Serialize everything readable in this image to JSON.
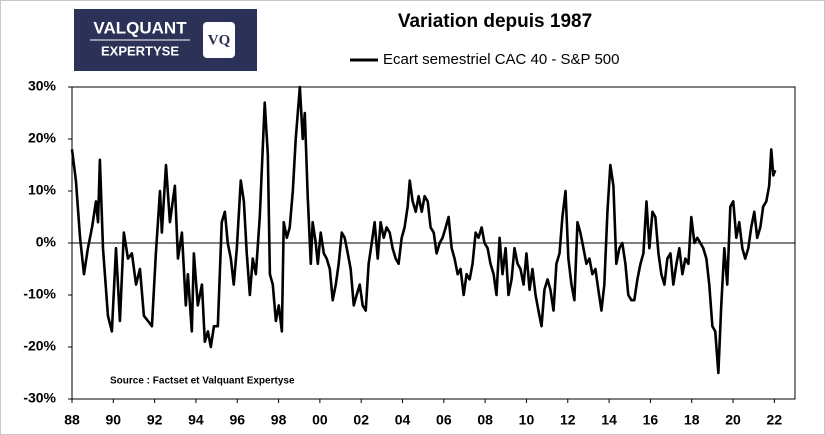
{
  "chart_data": {
    "type": "line",
    "title": "Variation depuis 1987",
    "annotation": "Source : Factset et Valquant Expertyse",
    "logo_text": [
      "VALQUANT",
      "EXPERTYSE",
      "VQ"
    ],
    "x": [
      1988.0,
      1988.19,
      1988.39,
      1988.58,
      1988.77,
      1988.97,
      1989.16,
      1989.26,
      1989.35,
      1989.5,
      1989.74,
      1989.93,
      1990.13,
      1990.32,
      1990.51,
      1990.71,
      1990.9,
      1991.1,
      1991.29,
      1991.48,
      1991.68,
      1991.87,
      1992.06,
      1992.26,
      1992.35,
      1992.55,
      1992.74,
      1992.98,
      1993.13,
      1993.32,
      1993.51,
      1993.61,
      1993.8,
      1993.9,
      1994.09,
      1994.29,
      1994.43,
      1994.58,
      1994.72,
      1994.87,
      1995.06,
      1995.25,
      1995.4,
      1995.54,
      1995.69,
      1995.83,
      1995.98,
      1996.17,
      1996.32,
      1996.46,
      1996.61,
      1996.75,
      1996.9,
      1997.09,
      1997.33,
      1997.48,
      1997.58,
      1997.72,
      1997.87,
      1998.01,
      1998.16,
      1998.25,
      1998.4,
      1998.54,
      1998.69,
      1998.83,
      1999.03,
      1999.17,
      1999.27,
      1999.41,
      1999.56,
      1999.65,
      1999.8,
      1999.9,
      2000.04,
      2000.19,
      2000.33,
      2000.48,
      2000.62,
      2000.77,
      2000.91,
      2001.06,
      2001.2,
      2001.35,
      2001.49,
      2001.64,
      2001.78,
      2001.93,
      2002.07,
      2002.22,
      2002.36,
      2002.51,
      2002.65,
      2002.8,
      2002.94,
      2003.09,
      2003.23,
      2003.38,
      2003.52,
      2003.67,
      2003.81,
      2003.96,
      2004.1,
      2004.25,
      2004.35,
      2004.49,
      2004.64,
      2004.78,
      2004.93,
      2005.07,
      2005.22,
      2005.36,
      2005.51,
      2005.65,
      2005.8,
      2005.94,
      2006.09,
      2006.23,
      2006.38,
      2006.52,
      2006.67,
      2006.81,
      2006.96,
      2007.1,
      2007.25,
      2007.39,
      2007.54,
      2007.68,
      2007.83,
      2007.97,
      2008.12,
      2008.26,
      2008.41,
      2008.55,
      2008.7,
      2008.84,
      2008.99,
      2009.13,
      2009.28,
      2009.42,
      2009.57,
      2009.71,
      2009.86,
      2010.0,
      2010.15,
      2010.29,
      2010.44,
      2010.58,
      2010.73,
      2010.87,
      2011.02,
      2011.16,
      2011.31,
      2011.45,
      2011.6,
      2011.74,
      2011.89,
      2012.03,
      2012.18,
      2012.32,
      2012.47,
      2012.61,
      2012.76,
      2012.9,
      2013.05,
      2013.19,
      2013.34,
      2013.48,
      2013.63,
      2013.77,
      2013.92,
      2014.06,
      2014.21,
      2014.35,
      2014.5,
      2014.64,
      2014.79,
      2014.93,
      2015.08,
      2015.22,
      2015.37,
      2015.52,
      2015.66,
      2015.81,
      2015.95,
      2016.1,
      2016.24,
      2016.39,
      2016.53,
      2016.68,
      2016.82,
      2016.97,
      2017.11,
      2017.26,
      2017.4,
      2017.55,
      2017.69,
      2017.84,
      2017.98,
      2018.13,
      2018.27,
      2018.42,
      2018.56,
      2018.71,
      2018.85,
      2019.0,
      2019.14,
      2019.29,
      2019.43,
      2019.58,
      2019.72,
      2019.87,
      2020.01,
      2020.16,
      2020.3,
      2020.45,
      2020.59,
      2020.74,
      2020.88,
      2021.03,
      2021.17,
      2021.32,
      2021.46,
      2021.61,
      2021.75,
      2021.85,
      2021.95,
      2022.04
    ],
    "series": [
      {
        "name": "Ecart semestriel CAC 40 - S&P 500",
        "color": "#000000",
        "values": [
          18,
          12,
          1,
          -6,
          -1,
          3,
          8,
          4,
          16,
          -1,
          -14,
          -17,
          -1,
          -15,
          2,
          -3,
          -2,
          -8,
          -5,
          -14,
          -15,
          -16,
          -2,
          10,
          2,
          15,
          4,
          11,
          -3,
          2,
          -12,
          -6,
          -17,
          -2,
          -12,
          -8,
          -19,
          -17,
          -20,
          -16,
          -16,
          4,
          6,
          0,
          -3,
          -8,
          -1,
          12,
          8,
          -2,
          -10,
          -3,
          -6,
          5,
          27,
          17,
          -6,
          -8,
          -15,
          -12,
          -17,
          4,
          1,
          3,
          10,
          20,
          30,
          20,
          25,
          9,
          -4,
          4,
          0,
          -4,
          2,
          -2,
          -3,
          -5,
          -11,
          -8,
          -4,
          2,
          1,
          -2,
          -5,
          -12,
          -10,
          -8,
          -12,
          -13,
          -4,
          0,
          4,
          -3,
          4,
          1,
          3,
          2,
          -1,
          -3,
          -4,
          1,
          3,
          7,
          12,
          8,
          6,
          9,
          6,
          9,
          8,
          3,
          2,
          -2,
          0,
          1,
          3,
          5,
          -1,
          -3,
          -6,
          -5,
          -10,
          -6,
          -7,
          -4,
          2,
          1,
          3,
          0,
          -1,
          -4,
          -6,
          -10,
          1,
          -6,
          -1,
          -10,
          -7,
          -1,
          -4,
          -5,
          -8,
          -2,
          -9,
          -5,
          -10,
          -13,
          -16,
          -9,
          -7,
          -9,
          -13,
          -4,
          -2,
          5,
          10,
          -3,
          -8,
          -11,
          4,
          2,
          -1,
          -4,
          -3,
          -6,
          -5,
          -9,
          -13,
          -8,
          6,
          15,
          11,
          -4,
          -1,
          0,
          -4,
          -10,
          -11,
          -11,
          -7,
          -4,
          -2,
          8,
          -1,
          6,
          5,
          -2,
          -6,
          -8,
          -3,
          -2,
          -8,
          -4,
          -1,
          -6,
          -3,
          -4,
          5,
          0,
          1,
          0,
          -1,
          -3,
          -8,
          -16,
          -17,
          -25,
          -12,
          -1,
          -8,
          7,
          8,
          1,
          4,
          -1,
          -3,
          -1,
          3,
          6,
          1,
          3,
          7,
          8,
          11,
          18,
          13,
          14
        ]
      }
    ],
    "xlim": [
      1988,
      2023
    ],
    "xticks": [
      {
        "value": 1988,
        "label": "88"
      },
      {
        "value": 1990,
        "label": "90"
      },
      {
        "value": 1992,
        "label": "92"
      },
      {
        "value": 1994,
        "label": "94"
      },
      {
        "value": 1996,
        "label": "96"
      },
      {
        "value": 1998,
        "label": "98"
      },
      {
        "value": 2000,
        "label": "00"
      },
      {
        "value": 2002,
        "label": "02"
      },
      {
        "value": 2004,
        "label": "04"
      },
      {
        "value": 2006,
        "label": "06"
      },
      {
        "value": 2008,
        "label": "08"
      },
      {
        "value": 2010,
        "label": "10"
      },
      {
        "value": 2012,
        "label": "12"
      },
      {
        "value": 2014,
        "label": "14"
      },
      {
        "value": 2016,
        "label": "16"
      },
      {
        "value": 2018,
        "label": "18"
      },
      {
        "value": 2020,
        "label": "20"
      },
      {
        "value": 2022,
        "label": "22"
      }
    ],
    "ylim": [
      -30,
      30
    ],
    "yticks": [
      {
        "value": -30,
        "label": "-30%"
      },
      {
        "value": -20,
        "label": "-20%"
      },
      {
        "value": -10,
        "label": "-10%"
      },
      {
        "value": 0,
        "label": "0%"
      },
      {
        "value": 10,
        "label": "10%"
      },
      {
        "value": 20,
        "label": "20%"
      },
      {
        "value": 30,
        "label": "30%"
      }
    ],
    "grid": false
  }
}
